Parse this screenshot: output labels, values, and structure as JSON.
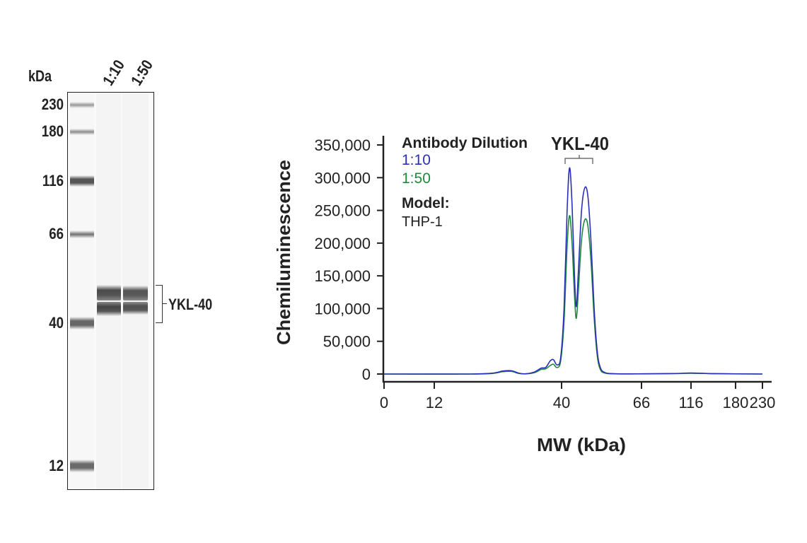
{
  "blot": {
    "unit_label": "kDa",
    "lane_labels": [
      "1:10",
      "1:50"
    ],
    "markers": [
      "230",
      "180",
      "116",
      "66",
      "40",
      "12"
    ],
    "target_label": "YKL-40"
  },
  "chart_data": {
    "type": "line",
    "xlabel": "MW (kDa)",
    "ylabel": "Chemiluminescence",
    "x_ticks": [
      0,
      12,
      40,
      66,
      116,
      180,
      230
    ],
    "x_tick_labels": [
      "0",
      "12",
      "40",
      "66",
      "116",
      "180",
      "230"
    ],
    "y_ticks": [
      0,
      50000,
      100000,
      150000,
      200000,
      250000,
      300000,
      350000
    ],
    "y_tick_labels": [
      "0",
      "50,000",
      "100,000",
      "150,000",
      "200,000",
      "250,000",
      "300,000",
      "350,000"
    ],
    "ylim": [
      0,
      350000
    ],
    "x_scale": "nonlinear (marker-calibrated)",
    "grid": false,
    "legend": {
      "title": "Antibody Dilution",
      "position": "top-left",
      "model_label": "Model:",
      "model_value": "THP-1"
    },
    "annotation": "YKL-40",
    "series": [
      {
        "name": "1:10",
        "color": "#2b2fb8",
        "points": [
          [
            0,
            0
          ],
          [
            20,
            0
          ],
          [
            25,
            1500
          ],
          [
            27,
            4500
          ],
          [
            29,
            5000
          ],
          [
            30.5,
            1500
          ],
          [
            32,
            300
          ],
          [
            34,
            3000
          ],
          [
            35.5,
            9000
          ],
          [
            36.5,
            10000
          ],
          [
            37.5,
            20000
          ],
          [
            38.2,
            22000
          ],
          [
            39,
            14000
          ],
          [
            39.8,
            25000
          ],
          [
            40.8,
            100000
          ],
          [
            41.8,
            250000
          ],
          [
            42.6,
            315000
          ],
          [
            43.4,
            260000
          ],
          [
            44.2,
            150000
          ],
          [
            44.8,
            103000
          ],
          [
            45.5,
            160000
          ],
          [
            46.5,
            250000
          ],
          [
            47.6,
            285000
          ],
          [
            48.6,
            270000
          ],
          [
            49.6,
            200000
          ],
          [
            50.6,
            100000
          ],
          [
            51.6,
            35000
          ],
          [
            52.6,
            10000
          ],
          [
            54,
            2500
          ],
          [
            57,
            500
          ],
          [
            66,
            300
          ],
          [
            100,
            800
          ],
          [
            116,
            1500
          ],
          [
            150,
            600
          ],
          [
            230,
            0
          ]
        ]
      },
      {
        "name": "1:50",
        "color": "#1e8a3a",
        "points": [
          [
            0,
            0
          ],
          [
            20,
            0
          ],
          [
            25,
            1000
          ],
          [
            27,
            3500
          ],
          [
            29,
            4000
          ],
          [
            30.5,
            1000
          ],
          [
            32,
            200
          ],
          [
            34,
            2000
          ],
          [
            35.5,
            7000
          ],
          [
            36.5,
            8000
          ],
          [
            37.5,
            13000
          ],
          [
            38.2,
            15000
          ],
          [
            39,
            10000
          ],
          [
            39.8,
            20000
          ],
          [
            40.8,
            80000
          ],
          [
            41.8,
            195000
          ],
          [
            42.6,
            242000
          ],
          [
            43.4,
            200000
          ],
          [
            44.2,
            120000
          ],
          [
            44.8,
            85000
          ],
          [
            45.5,
            130000
          ],
          [
            46.5,
            205000
          ],
          [
            47.6,
            236000
          ],
          [
            48.6,
            225000
          ],
          [
            49.6,
            170000
          ],
          [
            50.6,
            85000
          ],
          [
            51.6,
            28000
          ],
          [
            52.6,
            7000
          ],
          [
            54,
            1500
          ],
          [
            57,
            300
          ],
          [
            66,
            200
          ],
          [
            100,
            600
          ],
          [
            116,
            1200
          ],
          [
            150,
            500
          ],
          [
            230,
            0
          ]
        ]
      }
    ]
  }
}
